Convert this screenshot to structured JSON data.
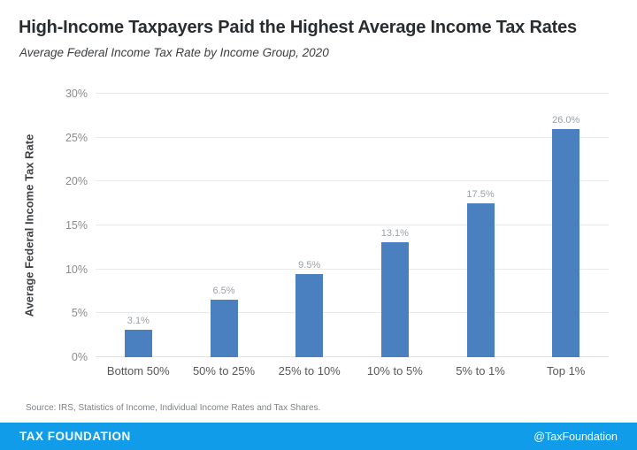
{
  "header": {
    "title": "High-Income Taxpayers Paid the Highest Average Income Tax Rates",
    "subtitle": "Average Federal Income Tax Rate by Income Group, 2020"
  },
  "chart_data": {
    "type": "bar",
    "title": "High-Income Taxpayers Paid the Highest Average Income Tax Rates",
    "subtitle": "Average Federal Income Tax Rate by Income Group, 2020",
    "categories": [
      "Bottom 50%",
      "50% to 25%",
      "25% to 10%",
      "10% to 5%",
      "5% to 1%",
      "Top 1%"
    ],
    "values": [
      3.1,
      6.5,
      9.5,
      13.1,
      17.5,
      26.0
    ],
    "value_labels": [
      "3.1%",
      "6.5%",
      "9.5%",
      "13.1%",
      "17.5%",
      "26.0%"
    ],
    "xlabel": "",
    "ylabel": "Average Federal Income Tax Rate",
    "ylim": [
      0,
      30
    ],
    "yticks": [
      "0%",
      "5%",
      "10%",
      "15%",
      "20%",
      "25%",
      "30%"
    ],
    "grid": true,
    "legend": false,
    "bar_color": "#4a80bf"
  },
  "source": "Source: IRS, Statistics of Income, Individual Income Rates and Tax Shares.",
  "footer": {
    "brand": "TAX FOUNDATION",
    "handle": "@TaxFoundation",
    "bg_color": "#109ce8"
  }
}
